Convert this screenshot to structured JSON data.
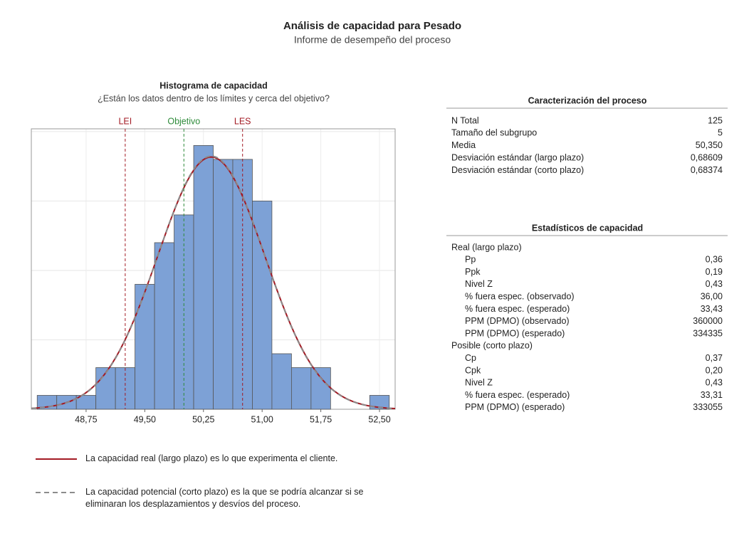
{
  "report": {
    "title": "Análisis de capacidad para Pesado",
    "subtitle": "Informe de desempeño del proceso"
  },
  "chart_data": {
    "type": "histogram",
    "title": "Histograma de capacidad",
    "subtitle": "¿Están los datos dentro de los límites y cerca del objetivo?",
    "bins": [
      48.125,
      48.375,
      48.625,
      48.875,
      49.125,
      49.375,
      49.625,
      49.875,
      50.125,
      50.375,
      50.625,
      50.875,
      51.125,
      51.375,
      51.625,
      51.875,
      52.125,
      52.375,
      52.625
    ],
    "values": [
      1,
      1,
      1,
      3,
      3,
      9,
      12,
      14,
      19,
      18,
      18,
      15,
      4,
      3,
      3,
      0,
      0,
      1
    ],
    "color": "#7da1d6",
    "xlim": [
      48.05,
      52.7
    ],
    "ylim": [
      0,
      20.2
    ],
    "xticks": [
      {
        "value": 48.75,
        "label": "48,75"
      },
      {
        "value": 49.5,
        "label": "49,50"
      },
      {
        "value": 50.25,
        "label": "50,25"
      },
      {
        "value": 51,
        "label": "51,00"
      },
      {
        "value": 51.75,
        "label": "51,75"
      },
      {
        "value": 52.5,
        "label": "52,50"
      }
    ],
    "yticks": [
      0,
      5,
      10,
      15,
      20
    ],
    "grid": true,
    "spec_lines": [
      {
        "label": "LEI",
        "value": 49.25,
        "color": "#a31b24"
      },
      {
        "label": "Objetivo",
        "value": 50,
        "color": "#2e8b3a"
      },
      {
        "label": "LES",
        "value": 50.75,
        "color": "#a31b24"
      }
    ],
    "curves": [
      {
        "name": "La capacidad real (largo plazo) es lo que experimenta el cliente.",
        "color": "#a31b24",
        "mean": 50.35,
        "sd": 0.68609,
        "dashed": false
      },
      {
        "name": "La capacidad potencial (corto plazo) es la que se podría alcanzar si se eliminaran los desplazamientos y desvíos del proceso.",
        "color": "#8c8c8c",
        "mean": 50.35,
        "sd": 0.68374,
        "dashed": true
      }
    ]
  },
  "process": {
    "title": "Caracterización del proceso",
    "rows": [
      [
        "N Total",
        "125"
      ],
      [
        "Tamaño del subgrupo",
        "5"
      ],
      [
        "Media",
        "50,350"
      ],
      [
        "Desviación estándar (largo plazo)",
        "0,68609"
      ],
      [
        "Desviación estándar (corto plazo)",
        "0,68374"
      ]
    ]
  },
  "capability": {
    "title": "Estadísticos de capacidad",
    "groups": [
      {
        "name": "Real (largo plazo)",
        "rows": [
          [
            "Pp",
            "0,36"
          ],
          [
            "Ppk",
            "0,19"
          ],
          [
            "Nivel Z",
            "0,43"
          ],
          [
            "% fuera espec. (observado)",
            "36,00"
          ],
          [
            "% fuera espec. (esperado)",
            "33,43"
          ],
          [
            "PPM (DPMO) (observado)",
            "360000"
          ],
          [
            "PPM (DPMO) (esperado)",
            "334335"
          ]
        ]
      },
      {
        "name": "Posible (corto plazo)",
        "rows": [
          [
            "Cp",
            "0,37"
          ],
          [
            "Cpk",
            "0,20"
          ],
          [
            "Nivel Z",
            "0,43"
          ],
          [
            "% fuera espec. (esperado)",
            "33,31"
          ],
          [
            "PPM (DPMO) (esperado)",
            "333055"
          ]
        ]
      }
    ]
  }
}
